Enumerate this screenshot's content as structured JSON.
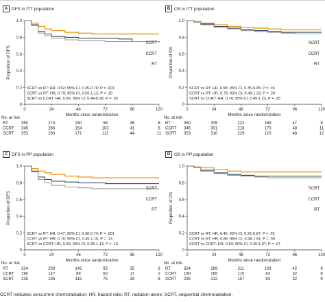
{
  "caption": "CCRT indicates concurrent chemoradiation; HR, hazard ratio; RT, radiation alone; SCRT, sequential chemoradiation.",
  "colors": {
    "SCRT": "#f29a1f",
    "CCRT": "#2a4a5e",
    "RT": "#9a9a9a",
    "axis": "#333333"
  },
  "panels": [
    {
      "letter": "A",
      "title": "DFS in ITT population",
      "ylabel": "Proportion of DFS",
      "stats": [
        "SCRT vs RT: HR, 0.52; 95% CI, 0.35-0.76; P = .001",
        "CCRT vs RT: HR, 0.79; 95% CI, 0.56-1.12; P = .19",
        "SCRT vs CCRT: HR, 0.66; 95% CI, 0.44-0.96; P = .03"
      ],
      "curve_labels": [
        {
          "name": "SCRT",
          "text": "SCRT"
        },
        {
          "name": "CCRT",
          "text": "CCRT"
        },
        {
          "name": "RT",
          "text": "RT"
        }
      ],
      "risk": {
        "heading": "No. at risk",
        "rows": [
          {
            "group": "RT",
            "counts": [
              "350",
              "274",
              "150",
              "98",
              "36",
              "6"
            ]
          },
          {
            "group": "CCRT",
            "counts": [
              "345",
              "265",
              "154",
              "103",
              "41",
              "6"
            ]
          },
          {
            "group": "SCRT",
            "counts": [
              "353",
              "293",
              "171",
              "112",
              "44",
              "11"
            ]
          }
        ]
      }
    },
    {
      "letter": "B",
      "title": "OS in ITT population",
      "ylabel": "Proportion of OS",
      "stats": [
        "SCRT vs RT: HR, 0.58; 95% CI, 0.35-0.95; P = .03",
        "CCRT vs RT: HR, 0.78; 95% CI, 0.49-1.23; P = .29",
        "SCRT vs CCRT: HR, 0.74; 95% CI, 0.45-1.23, P = .25"
      ],
      "curve_labels": [
        {
          "name": "SCRT",
          "text": "SCRT"
        },
        {
          "name": "CCRT",
          "text": "CCRT"
        },
        {
          "name": "RT",
          "text": "RT"
        }
      ],
      "risk": {
        "heading": "No. at risk",
        "rows": [
          {
            "group": "RT",
            "counts": [
              "350",
              "305",
              "222",
              "169",
              "47",
              "9"
            ]
          },
          {
            "group": "CCRT",
            "counts": [
              "345",
              "301",
              "218",
              "170",
              "48",
              "11"
            ]
          },
          {
            "group": "SCRT",
            "counts": [
              "353",
              "310",
              "229",
              "120",
              "48",
              "12"
            ]
          }
        ]
      }
    },
    {
      "letter": "C",
      "title": "DFS in PP population",
      "ylabel": "Proportion of DFS",
      "stats": [
        "SCRT vs RT: HR, 0.47; 95% CI, 0.30-0.74; P = .001",
        "CCRT vs RT: HR, 0.70; 95% CI, 0.45-1.10, P = .13",
        "SCRT vs CCRT: HR, 0.66; 95% CI, 0.38-1.13; P = .13"
      ],
      "curve_labels": [
        {
          "name": "SCRT",
          "text": "SCRT"
        },
        {
          "name": "CCRT",
          "text": "CCRT"
        },
        {
          "name": "RT",
          "text": "RT"
        }
      ],
      "risk": {
        "heading": "No. at risk",
        "rows": [
          {
            "group": "RT",
            "counts": [
              "324",
              "259",
              "142",
              "92",
              "35",
              "6"
            ]
          },
          {
            "group": "CCRT",
            "counts": [
              "190",
              "147",
              "89",
              "60",
              "17",
              "2"
            ]
          },
          {
            "group": "SCRT",
            "counts": [
              "235",
              "195",
              "115",
              "75",
              "28",
              "8"
            ]
          }
        ]
      }
    },
    {
      "letter": "D",
      "title": "OS in PP population",
      "ylabel": "Proportion of OS",
      "stats": [
        "SCRT vs RT: HR, 0.46; 95% CI, 0.25-0.87; P = .02",
        "CCRT vs RT: HR, 0.86; 95% CI, 0.48-1.51; P = .59",
        "SCRT vs CCRT: HR, 0.53; 95% CI, 0.26-1.07; P = .07"
      ],
      "curve_labels": [
        {
          "name": "SCRT",
          "text": "SCRT"
        },
        {
          "name": "CCRT",
          "text": "CCRT"
        },
        {
          "name": "RT",
          "text": "RT"
        }
      ],
      "risk": {
        "heading": "No. at risk",
        "rows": [
          {
            "group": "RT",
            "counts": [
              "324",
              "289",
              "211",
              "103",
              "42",
              "9"
            ]
          },
          {
            "group": "CCRT",
            "counts": [
              "190",
              "165",
              "115",
              "83",
              "32",
              "9"
            ]
          },
          {
            "group": "SCRT",
            "counts": [
              "235",
              "212",
              "157",
              "83",
              "32",
              "9"
            ]
          }
        ]
      }
    }
  ],
  "chart_data": [
    {
      "type": "line",
      "title": "DFS in ITT population",
      "xlabel": "Months since randomization",
      "ylabel": "Proportion of DFS",
      "xlim": [
        0,
        120
      ],
      "ylim": [
        0,
        1.0
      ],
      "xticks": [
        0,
        24,
        48,
        72,
        96,
        120
      ],
      "yticks": [
        0,
        0.2,
        0.4,
        0.6,
        0.8,
        1.0
      ],
      "series": [
        {
          "name": "SCRT",
          "x": [
            0,
            6,
            12,
            18,
            24,
            36,
            48,
            60,
            72,
            84,
            96,
            120
          ],
          "y": [
            1.0,
            0.97,
            0.93,
            0.9,
            0.88,
            0.86,
            0.85,
            0.84,
            0.84,
            0.84,
            0.84,
            0.84
          ]
        },
        {
          "name": "CCRT",
          "x": [
            0,
            6,
            12,
            18,
            24,
            36,
            48,
            60,
            72,
            84,
            96,
            120
          ],
          "y": [
            1.0,
            0.95,
            0.87,
            0.84,
            0.81,
            0.8,
            0.79,
            0.79,
            0.79,
            0.78,
            0.75,
            0.74
          ]
        },
        {
          "name": "RT",
          "x": [
            0,
            6,
            12,
            18,
            24,
            36,
            48,
            60,
            72,
            84,
            96,
            120
          ],
          "y": [
            1.0,
            0.94,
            0.85,
            0.82,
            0.79,
            0.77,
            0.76,
            0.76,
            0.75,
            0.75,
            0.75,
            0.75
          ]
        }
      ]
    },
    {
      "type": "line",
      "title": "OS in ITT population",
      "xlabel": "Months since randomization",
      "ylabel": "Proportion of OS",
      "xlim": [
        0,
        120
      ],
      "ylim": [
        0,
        1.0
      ],
      "xticks": [
        0,
        24,
        48,
        72,
        96,
        120
      ],
      "yticks": [
        0,
        0.2,
        0.4,
        0.6,
        0.8,
        1.0
      ],
      "series": [
        {
          "name": "SCRT",
          "x": [
            0,
            6,
            12,
            24,
            36,
            48,
            60,
            72,
            84,
            96,
            120
          ],
          "y": [
            1.0,
            0.99,
            0.97,
            0.95,
            0.93,
            0.92,
            0.91,
            0.9,
            0.89,
            0.89,
            0.89
          ]
        },
        {
          "name": "CCRT",
          "x": [
            0,
            6,
            12,
            24,
            36,
            48,
            60,
            72,
            84,
            96,
            120
          ],
          "y": [
            1.0,
            0.98,
            0.96,
            0.93,
            0.91,
            0.89,
            0.88,
            0.87,
            0.86,
            0.86,
            0.86
          ]
        },
        {
          "name": "RT",
          "x": [
            0,
            6,
            12,
            24,
            36,
            48,
            60,
            72,
            84,
            96,
            120
          ],
          "y": [
            1.0,
            0.98,
            0.95,
            0.92,
            0.9,
            0.88,
            0.87,
            0.86,
            0.85,
            0.84,
            0.84
          ]
        }
      ]
    },
    {
      "type": "line",
      "title": "DFS in PP population",
      "xlabel": "Months since randomization",
      "ylabel": "Proportion of DFS",
      "xlim": [
        0,
        120
      ],
      "ylim": [
        0,
        1.0
      ],
      "xticks": [
        0,
        24,
        48,
        72,
        96,
        120
      ],
      "yticks": [
        0,
        0.2,
        0.4,
        0.6,
        0.8,
        1.0
      ],
      "series": [
        {
          "name": "SCRT",
          "x": [
            0,
            6,
            12,
            18,
            24,
            36,
            48,
            60,
            72,
            84,
            96,
            120
          ],
          "y": [
            1.0,
            0.97,
            0.94,
            0.92,
            0.9,
            0.88,
            0.87,
            0.86,
            0.86,
            0.86,
            0.86,
            0.86
          ]
        },
        {
          "name": "CCRT",
          "x": [
            0,
            6,
            12,
            18,
            24,
            36,
            48,
            60,
            72,
            84,
            96,
            120
          ],
          "y": [
            1.0,
            0.94,
            0.87,
            0.84,
            0.82,
            0.81,
            0.8,
            0.8,
            0.79,
            0.79,
            0.79,
            0.79
          ]
        },
        {
          "name": "RT",
          "x": [
            0,
            6,
            12,
            18,
            24,
            36,
            48,
            60,
            72,
            84,
            96,
            120
          ],
          "y": [
            1.0,
            0.93,
            0.84,
            0.8,
            0.77,
            0.75,
            0.74,
            0.73,
            0.73,
            0.73,
            0.73,
            0.73
          ]
        }
      ]
    },
    {
      "type": "line",
      "title": "OS in PP population",
      "xlabel": "Months since randomization",
      "ylabel": "Proportion of OS",
      "xlim": [
        0,
        120
      ],
      "ylim": [
        0,
        1.0
      ],
      "xticks": [
        0,
        24,
        48,
        72,
        96,
        120
      ],
      "yticks": [
        0,
        0.2,
        0.4,
        0.6,
        0.8,
        1.0
      ],
      "series": [
        {
          "name": "SCRT",
          "x": [
            0,
            6,
            12,
            24,
            36,
            48,
            60,
            72,
            84,
            96,
            120
          ],
          "y": [
            1.0,
            0.99,
            0.98,
            0.96,
            0.94,
            0.93,
            0.93,
            0.93,
            0.93,
            0.93,
            0.93
          ]
        },
        {
          "name": "CCRT",
          "x": [
            0,
            6,
            12,
            24,
            36,
            48,
            60,
            72,
            84,
            96,
            120
          ],
          "y": [
            1.0,
            0.98,
            0.95,
            0.92,
            0.9,
            0.89,
            0.88,
            0.88,
            0.88,
            0.88,
            0.88
          ]
        },
        {
          "name": "RT",
          "x": [
            0,
            6,
            12,
            24,
            36,
            48,
            60,
            72,
            84,
            96,
            120
          ],
          "y": [
            1.0,
            0.98,
            0.94,
            0.91,
            0.89,
            0.88,
            0.87,
            0.86,
            0.86,
            0.86,
            0.86
          ]
        }
      ]
    }
  ]
}
